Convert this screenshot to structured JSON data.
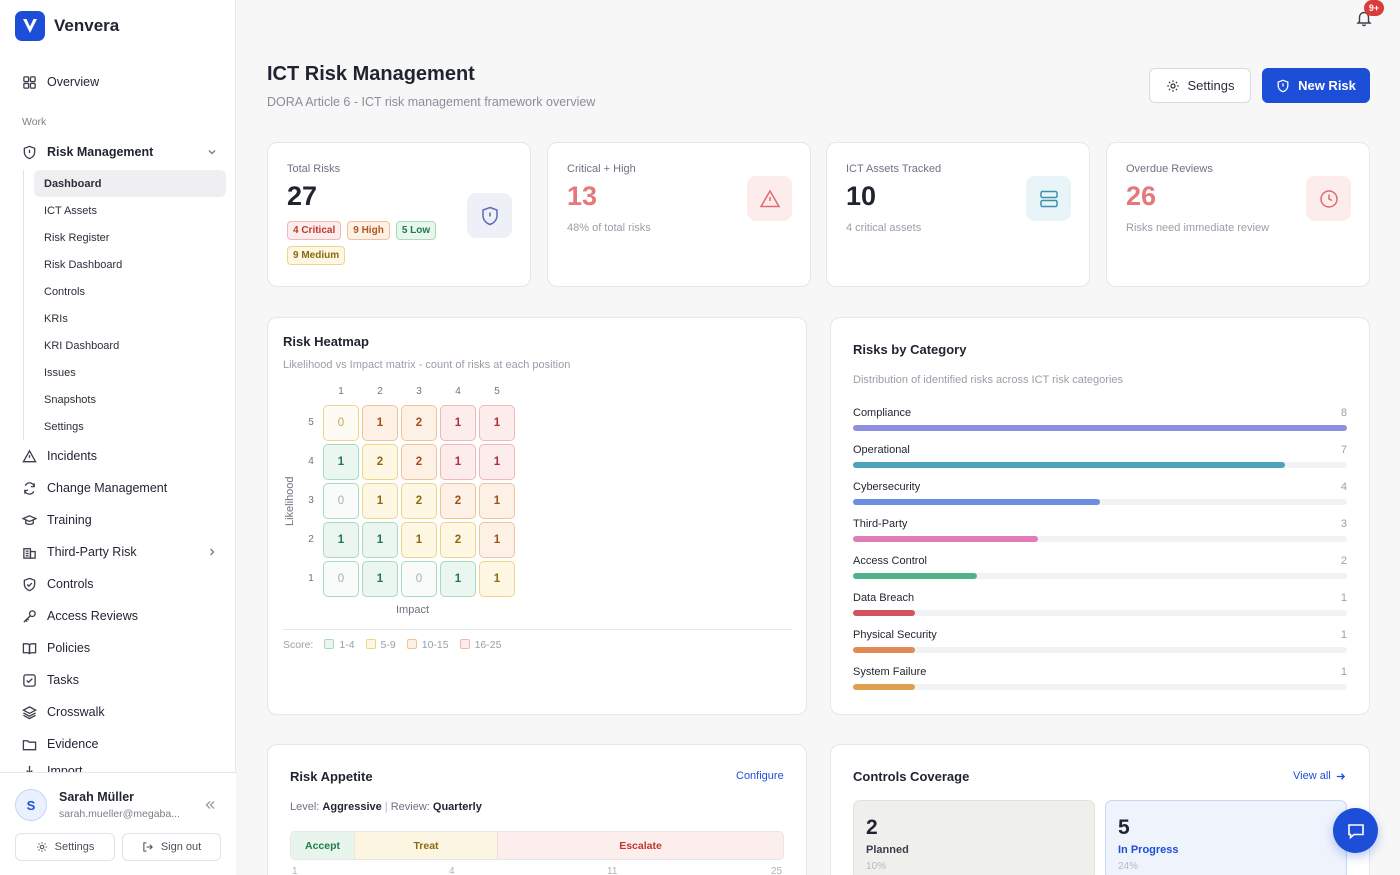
{
  "app": {
    "name": "Venvera"
  },
  "sidebar": {
    "overview": "Overview",
    "section_work": "Work",
    "risk_management": "Risk Management",
    "risk_sub": [
      "Dashboard",
      "ICT Assets",
      "Risk Register",
      "Risk Dashboard",
      "Controls",
      "KRIs",
      "KRI Dashboard",
      "Issues",
      "Snapshots",
      "Settings"
    ],
    "items": [
      {
        "label": "Incidents",
        "icon": "alert-triangle-icon"
      },
      {
        "label": "Change Management",
        "icon": "refresh-icon"
      },
      {
        "label": "Training",
        "icon": "graduation-cap-icon"
      },
      {
        "label": "Third-Party Risk",
        "icon": "building-icon"
      },
      {
        "label": "Controls",
        "icon": "shield-check-icon"
      },
      {
        "label": "Access Reviews",
        "icon": "key-icon"
      },
      {
        "label": "Policies",
        "icon": "book-icon"
      },
      {
        "label": "Tasks",
        "icon": "checkbox-icon"
      },
      {
        "label": "Crosswalk",
        "icon": "layers-icon"
      },
      {
        "label": "Evidence",
        "icon": "folder-icon"
      },
      {
        "label": "Import",
        "icon": "import-icon"
      }
    ]
  },
  "user": {
    "initial": "S",
    "name": "Sarah Müller",
    "email": "sarah.mueller@megaba...",
    "settings_label": "Settings",
    "signout_label": "Sign out"
  },
  "header": {
    "notification_badge": "9+",
    "title": "ICT Risk Management",
    "subtitle": "DORA Article 6 - ICT risk management framework overview",
    "settings_label": "Settings",
    "new_risk_label": "New Risk"
  },
  "stats": {
    "total": {
      "label": "Total Risks",
      "value": "27",
      "chips": [
        "4 Critical",
        "9 High",
        "5 Low",
        "9 Medium"
      ]
    },
    "critical_high": {
      "label": "Critical + High",
      "value": "13",
      "note": "48% of total risks"
    },
    "assets": {
      "label": "ICT Assets Tracked",
      "value": "10",
      "note": "4 critical assets"
    },
    "overdue": {
      "label": "Overdue Reviews",
      "value": "26",
      "note": "Risks need immediate review"
    }
  },
  "heatmap": {
    "title": "Risk Heatmap",
    "subtitle": "Likelihood vs Impact matrix - count of risks at each position",
    "impact_labels": [
      "1",
      "2",
      "3",
      "4",
      "5"
    ],
    "likelihood_labels": [
      "5",
      "4",
      "3",
      "2",
      "1"
    ],
    "cells": [
      [
        "0",
        "1",
        "2",
        "1",
        "1"
      ],
      [
        "1",
        "2",
        "2",
        "1",
        "1"
      ],
      [
        "0",
        "1",
        "2",
        "2",
        "1"
      ],
      [
        "1",
        "1",
        "1",
        "2",
        "1"
      ],
      [
        "0",
        "1",
        "0",
        "1",
        "1"
      ]
    ],
    "y_axis": "Likelihood",
    "x_axis": "Impact",
    "legend_title": "Score:",
    "legend": [
      "1-4",
      "5-9",
      "10-15",
      "16-25"
    ]
  },
  "categories": {
    "title": "Risks by Category",
    "subtitle": "Distribution of identified risks across ICT risk categories",
    "max": 8,
    "items": [
      {
        "name": "Compliance",
        "count": 8,
        "color": "#8f8fe0"
      },
      {
        "name": "Operational",
        "count": 7,
        "color": "#4fa3b8"
      },
      {
        "name": "Cybersecurity",
        "count": 4,
        "color": "#6b8fe0"
      },
      {
        "name": "Third-Party",
        "count": 3,
        "color": "#e07bb8"
      },
      {
        "name": "Access Control",
        "count": 2,
        "color": "#4fb38a"
      },
      {
        "name": "Data Breach",
        "count": 1,
        "color": "#d0555e"
      },
      {
        "name": "Physical Security",
        "count": 1,
        "color": "#e08b55"
      },
      {
        "name": "System Failure",
        "count": 1,
        "color": "#e0a050"
      }
    ]
  },
  "appetite": {
    "title": "Risk Appetite",
    "configure": "Configure",
    "level_label": "Level:",
    "level": "Aggressive",
    "sep": "|",
    "review_label": "Review:",
    "review": "Quarterly",
    "segments": [
      "Accept",
      "Treat",
      "Escalate"
    ],
    "ticks": [
      "1",
      "4",
      "11",
      "25"
    ]
  },
  "coverage": {
    "title": "Controls Coverage",
    "view_all": "View all",
    "planned": {
      "value": "2",
      "label": "Planned",
      "pct": "10%"
    },
    "in_progress": {
      "value": "5",
      "label": "In Progress",
      "pct": "24%"
    }
  }
}
